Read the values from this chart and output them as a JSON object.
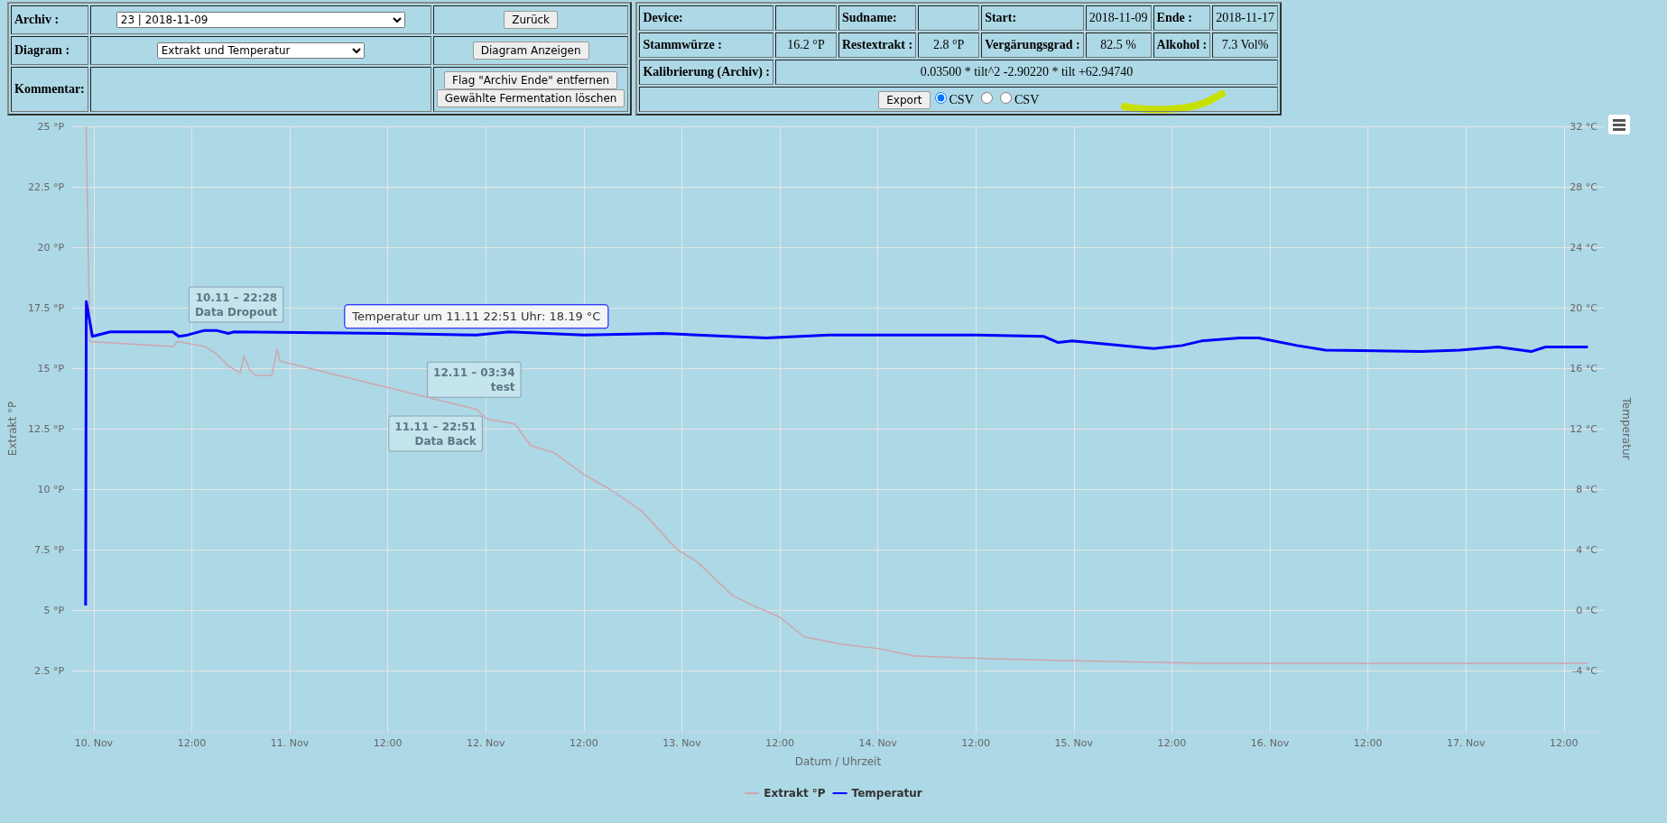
{
  "chart_data": {
    "type": "line",
    "xlabel": "Datum / Uhrzeit",
    "ylabel": "Extrakt °P",
    "y2label": "Temperatur",
    "xlim": [
      "2018-11-09T21:15",
      "2018-11-17T17:00"
    ],
    "xticks": [
      {
        "value": "2018-11-10T00:00",
        "label": "10. Nov"
      },
      {
        "value": "2018-11-10T12:00",
        "label": "12:00"
      },
      {
        "value": "2018-11-11T00:00",
        "label": "11. Nov"
      },
      {
        "value": "2018-11-11T12:00",
        "label": "12:00"
      },
      {
        "value": "2018-11-12T00:00",
        "label": "12. Nov"
      },
      {
        "value": "2018-11-12T12:00",
        "label": "12:00"
      },
      {
        "value": "2018-11-13T00:00",
        "label": "13. Nov"
      },
      {
        "value": "2018-11-13T12:00",
        "label": "12:00"
      },
      {
        "value": "2018-11-14T00:00",
        "label": "14. Nov"
      },
      {
        "value": "2018-11-14T12:00",
        "label": "12:00"
      },
      {
        "value": "2018-11-15T00:00",
        "label": "15. Nov"
      },
      {
        "value": "2018-11-15T12:00",
        "label": "12:00"
      },
      {
        "value": "2018-11-16T00:00",
        "label": "16. Nov"
      },
      {
        "value": "2018-11-16T12:00",
        "label": "12:00"
      },
      {
        "value": "2018-11-17T00:00",
        "label": "17. Nov"
      },
      {
        "value": "2018-11-17T12:00",
        "label": "12:00"
      }
    ],
    "ylim": [
      0,
      25
    ],
    "yticks": [
      {
        "value": 0,
        "label": null
      },
      {
        "value": 2.5,
        "label": "2.5 °P"
      },
      {
        "value": 5,
        "label": "5 °P"
      },
      {
        "value": 7.5,
        "label": "7.5 °P"
      },
      {
        "value": 10,
        "label": "10 °P"
      },
      {
        "value": 12.5,
        "label": "12.5 °P"
      },
      {
        "value": 15,
        "label": "15 °P"
      },
      {
        "value": 17.5,
        "label": "17.5 °P"
      },
      {
        "value": 20,
        "label": "20 °P"
      },
      {
        "value": 22.5,
        "label": "22.5 °P"
      },
      {
        "value": 25,
        "label": "25 °P"
      }
    ],
    "y2lim": [
      -8,
      32
    ],
    "y2ticks": [
      {
        "value": -8,
        "label": null
      },
      {
        "value": -4,
        "label": "-4 °C"
      },
      {
        "value": 0,
        "label": "0 °C"
      },
      {
        "value": 4,
        "label": "4 °C"
      },
      {
        "value": 8,
        "label": "8 °C"
      },
      {
        "value": 12,
        "label": "12 °C"
      },
      {
        "value": 16,
        "label": "16 °C"
      },
      {
        "value": 20,
        "label": "20 °C"
      },
      {
        "value": 24,
        "label": "24 °C"
      },
      {
        "value": 28,
        "label": "28 °C"
      },
      {
        "value": 32,
        "label": "32 °C"
      }
    ],
    "grid": true,
    "legend": "bottom",
    "marker": "none",
    "line_style": "solid",
    "series": [
      {
        "name": "Extrakt °P",
        "color": "#cfa5ad",
        "x": [
          "2018-11-09T23:04",
          "2018-11-09T23:30",
          "2018-11-10T09:40",
          "2018-11-10T10:15",
          "2018-11-10T13:34",
          "2018-11-10T15:00",
          "2018-11-10T16:28",
          "2018-11-10T17:54",
          "2018-11-10T18:24",
          "2018-11-10T19:08",
          "2018-11-10T19:51",
          "2018-11-10T21:48",
          "2018-11-10T22:28",
          "2018-11-10T22:46",
          "2018-11-11T22:51",
          "2018-11-12T00:09",
          "2018-11-12T03:34",
          "2018-11-12T05:28",
          "2018-11-12T08:24",
          "2018-11-12T12:01",
          "2018-11-12T15:10",
          "2018-11-12T19:04",
          "2018-11-12T23:25",
          "2018-11-13T01:51",
          "2018-11-13T06:13",
          "2018-11-13T08:38",
          "2018-11-13T12:01",
          "2018-11-13T14:56",
          "2018-11-13T19:18",
          "2018-11-14T00:09",
          "2018-11-14T04:30",
          "2018-11-14T12:07",
          "2018-11-14T23:48",
          "2018-11-15T15:37",
          "2018-11-16T12:06",
          "2018-11-17T14:56"
        ],
        "values": [
          25,
          16.1,
          15.9,
          16.1,
          15.9,
          15.6,
          15.1,
          14.8,
          15.5,
          14.9,
          14.7,
          14.7,
          15.8,
          15.3,
          13.3,
          12.9,
          12.7,
          11.8,
          11.5,
          10.6,
          10.0,
          9.1,
          7.5,
          7.0,
          5.6,
          5.2,
          4.7,
          3.9,
          3.6,
          3.4,
          3.1,
          3.0,
          2.9,
          2.8,
          2.8,
          2.8
        ]
      },
      {
        "name": "Temperatur",
        "color": "#0000ff",
        "axis": "y2",
        "x": [
          "2018-11-09T23:00",
          "2018-11-09T23:05",
          "2018-11-09T23:50",
          "2018-11-10T02:00",
          "2018-11-10T09:40",
          "2018-11-10T10:25",
          "2018-11-10T11:30",
          "2018-11-10T13:33",
          "2018-11-10T15:00",
          "2018-11-10T16:28",
          "2018-11-10T17:10",
          "2018-11-11T12:00",
          "2018-11-11T22:51",
          "2018-11-12T02:50",
          "2018-11-12T12:00",
          "2018-11-12T21:40",
          "2018-11-13T05:45",
          "2018-11-13T10:20",
          "2018-11-13T18:00",
          "2018-11-14T04:32",
          "2018-11-14T12:07",
          "2018-11-14T20:20",
          "2018-11-14T22:05",
          "2018-11-14T23:48",
          "2018-11-15T03:55",
          "2018-11-15T09:46",
          "2018-11-15T13:15",
          "2018-11-15T15:37",
          "2018-11-15T20:17",
          "2018-11-15T22:39",
          "2018-11-16T03:19",
          "2018-11-16T06:49",
          "2018-11-16T18:30",
          "2018-11-16T23:14",
          "2018-11-17T03:55",
          "2018-11-17T08:00",
          "2018-11-17T09:44",
          "2018-11-17T14:56"
        ],
        "values": [
          0.3,
          20.4,
          18.1,
          18.4,
          18.4,
          18.1,
          18.2,
          18.5,
          18.5,
          18.3,
          18.4,
          18.3,
          18.19,
          18.4,
          18.2,
          18.3,
          18.1,
          18.0,
          18.2,
          18.2,
          18.2,
          18.1,
          17.7,
          17.8,
          17.6,
          17.3,
          17.5,
          17.8,
          18.0,
          18.0,
          17.5,
          17.2,
          17.1,
          17.2,
          17.4,
          17.1,
          17.4,
          17.4
        ]
      }
    ],
    "annotations": [
      "Archiv :",
      "23 | 2018-11-09",
      "Zurück",
      "Device:",
      "Sudname:",
      "Start:",
      "2018-11-09",
      "Ende :",
      "2018-11-17",
      "Diagram :",
      "Extrakt und Temperatur",
      "Diagram Anzeigen",
      "Stammwürze :",
      "16.2 °P",
      "Restextrakt :",
      "2.8 °P",
      "Vergärungsgrad :",
      "82.5 %",
      "Alkohol :",
      "7.3 Vol%",
      "Kommentar:",
      "Flag \"Archiv Ende\" entfernen",
      "Gewählte Fermentation löschen",
      "Kalibrierung (Archiv) :",
      "0.03500 * tilt^2 -2.90220 * tilt +62.94740",
      "Export",
      "CSV",
      "CSV",
      {
        "text": "10.11 – 22:28\nData Dropout",
        "x": "2018-11-10T22:28",
        "y": 15.8
      },
      {
        "text": "11.11 – 22:51\nData Back",
        "x": "2018-11-11T22:51",
        "y": 13.3
      },
      {
        "text": "12.11 – 03:34\ntest",
        "x": "2018-11-12T03:34",
        "y": 12.7
      },
      {
        "text": "Temperatur um 11.11 22:51 Uhr: 18.19 °C",
        "x": "2018-11-11T22:51",
        "y": 16.37
      }
    ]
  }
}
